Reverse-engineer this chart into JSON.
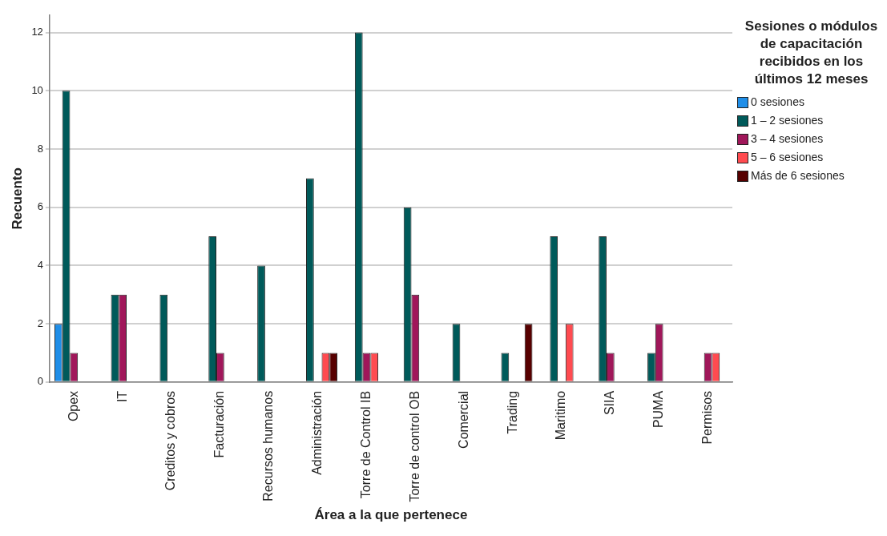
{
  "chart_data": {
    "type": "bar",
    "xlabel": "Área a la que pertenece",
    "ylabel": "Recuento",
    "legend_title": "Sesiones o módulos de capacitación recibidos en los últimos 12 meses",
    "categories": [
      "Opex",
      "IT",
      "Creditos y cobros",
      "Facturación",
      "Recursos humanos",
      "Administración",
      "Torre de Control IB",
      "Torre de control OB",
      "Comercial",
      "Trading",
      "Maritimo",
      "SIIA",
      "PUMA",
      "Permisos"
    ],
    "series": [
      {
        "name": "0 sesiones",
        "color": "#1f8ee8",
        "values": [
          2,
          null,
          null,
          null,
          null,
          null,
          null,
          null,
          null,
          null,
          null,
          null,
          null,
          null
        ]
      },
      {
        "name": "1 – 2 sesiones",
        "color": "#005a5a",
        "values": [
          10,
          3,
          3,
          5,
          4,
          7,
          12,
          6,
          2,
          1,
          5,
          5,
          1,
          null
        ]
      },
      {
        "name": "3 – 4 sesiones",
        "color": "#a0175a",
        "values": [
          1,
          3,
          null,
          1,
          null,
          null,
          1,
          3,
          null,
          null,
          null,
          1,
          2,
          1
        ]
      },
      {
        "name": "5 – 6 sesiones",
        "color": "#ff4b50",
        "values": [
          null,
          null,
          null,
          null,
          null,
          1,
          1,
          null,
          null,
          null,
          2,
          null,
          null,
          1
        ]
      },
      {
        "name": "Más de 6 sesiones",
        "color": "#570000",
        "values": [
          null,
          null,
          null,
          null,
          null,
          1,
          null,
          null,
          null,
          2,
          null,
          null,
          null,
          null
        ]
      }
    ],
    "ylim": [
      0,
      12.6
    ],
    "yticks": [
      0,
      2,
      4,
      6,
      8,
      10,
      12
    ],
    "grid": "y",
    "legend": "right"
  }
}
